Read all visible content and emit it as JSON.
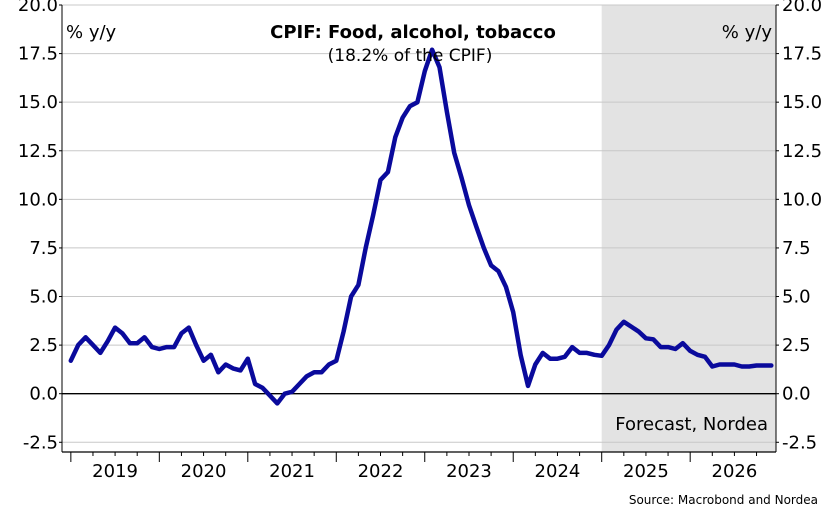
{
  "chart_data": {
    "type": "line",
    "title": "CPIF: Food, alcohol, tobacco",
    "subtitle": "(18.2% of the CPIF)",
    "ylabel_left": "% y/y",
    "ylabel_right": "% y/y",
    "source": "Source: Macrobond and Nordea",
    "forecast_label": "Forecast, Nordea",
    "forecast_start": 2025.0,
    "ylim": [
      -3,
      20
    ],
    "xlim": [
      2018.9,
      2026.97
    ],
    "yticks": [
      "-2.5",
      "0.0",
      "2.5",
      "5.0",
      "7.5",
      "10.0",
      "12.5",
      "15.0",
      "17.5",
      "20.0"
    ],
    "xtick_labels": [
      "2019",
      "2020",
      "2021",
      "2022",
      "2023",
      "2024",
      "2025",
      "2026"
    ],
    "grid": true,
    "line_color": "#0a0a9c",
    "forecast_shade_color": "#e3e3e3",
    "series": [
      {
        "x": [
          2019.0,
          2019.083,
          2019.167,
          2019.25,
          2019.333,
          2019.417,
          2019.5,
          2019.583,
          2019.667,
          2019.75,
          2019.833,
          2019.917,
          2020.0,
          2020.083,
          2020.167,
          2020.25,
          2020.333,
          2020.417,
          2020.5,
          2020.583,
          2020.667,
          2020.75,
          2020.833,
          2020.917,
          2021.0,
          2021.083,
          2021.167,
          2021.25,
          2021.333,
          2021.417,
          2021.5,
          2021.583,
          2021.667,
          2021.75,
          2021.833,
          2021.917,
          2022.0,
          2022.083,
          2022.167,
          2022.25,
          2022.333,
          2022.417,
          2022.5,
          2022.583,
          2022.667,
          2022.75,
          2022.833,
          2022.917,
          2023.0,
          2023.083,
          2023.167,
          2023.25,
          2023.333,
          2023.417,
          2023.5,
          2023.583,
          2023.667,
          2023.75,
          2023.833,
          2023.917,
          2024.0,
          2024.083,
          2024.167,
          2024.25,
          2024.333,
          2024.417,
          2024.5,
          2024.583,
          2024.667,
          2024.75,
          2024.833,
          2024.917,
          2025.0,
          2025.083,
          2025.167,
          2025.25,
          2025.333,
          2025.417,
          2025.5,
          2025.583,
          2025.667,
          2025.75,
          2025.833,
          2025.917,
          2026.0,
          2026.083,
          2026.167,
          2026.25,
          2026.333,
          2026.417,
          2026.5,
          2026.583,
          2026.667,
          2026.75,
          2026.833,
          2026.917
        ],
        "values": [
          1.7,
          2.5,
          2.9,
          2.5,
          2.1,
          2.7,
          3.4,
          3.1,
          2.6,
          2.6,
          2.9,
          2.4,
          2.3,
          2.4,
          2.4,
          3.1,
          3.4,
          2.5,
          1.7,
          2.0,
          1.1,
          1.5,
          1.3,
          1.2,
          1.8,
          0.5,
          0.3,
          -0.1,
          -0.5,
          0.0,
          0.1,
          0.5,
          0.9,
          1.1,
          1.1,
          1.5,
          1.7,
          3.2,
          5.0,
          5.6,
          7.5,
          9.2,
          11.0,
          11.4,
          13.2,
          14.2,
          14.8,
          15.0,
          16.6,
          17.7,
          16.8,
          14.5,
          12.4,
          11.1,
          9.7,
          8.6,
          7.5,
          6.6,
          6.3,
          5.5,
          4.2,
          2.0,
          0.4,
          1.5,
          2.1,
          1.8,
          1.8,
          1.9,
          2.4,
          2.1,
          2.1,
          2.0,
          1.95,
          2.5,
          3.3,
          3.7,
          3.45,
          3.2,
          2.85,
          2.8,
          2.4,
          2.4,
          2.3,
          2.6,
          2.2,
          2.0,
          1.9,
          1.4,
          1.5,
          1.5,
          1.5,
          1.4,
          1.4,
          1.45,
          1.45,
          1.45
        ]
      }
    ]
  }
}
